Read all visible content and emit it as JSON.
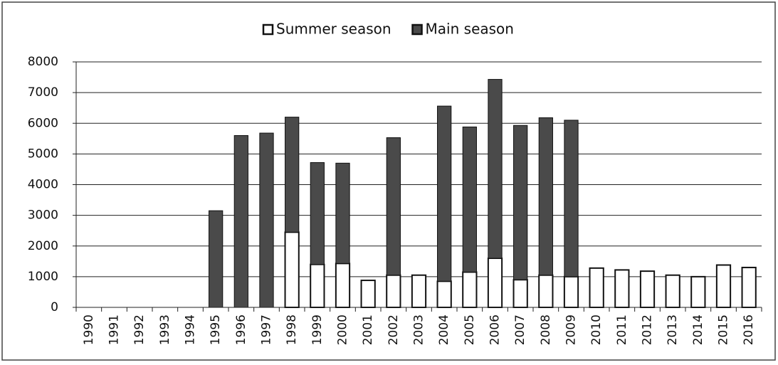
{
  "chart_data": {
    "type": "stacked-bar",
    "categories": [
      "1990",
      "1991",
      "1992",
      "1993",
      "1994",
      "1995",
      "1996",
      "1997",
      "1998",
      "1999",
      "2000",
      "2001",
      "2002",
      "2003",
      "2004",
      "2005",
      "2006",
      "2007",
      "2008",
      "2009",
      "2010",
      "2011",
      "2012",
      "2013",
      "2014",
      "2015",
      "2016"
    ],
    "series": [
      {
        "name": "Summer season",
        "color": "#ffffff",
        "values": [
          0,
          0,
          0,
          0,
          0,
          0,
          0,
          0,
          2450,
          1400,
          1430,
          880,
          1050,
          1050,
          850,
          1150,
          1600,
          900,
          1050,
          1000,
          1280,
          1220,
          1180,
          1050,
          1000,
          1380,
          1300
        ]
      },
      {
        "name": "Main season",
        "color": "#4a4a4a",
        "values": [
          0,
          0,
          0,
          0,
          0,
          3150,
          5600,
          5680,
          3750,
          3320,
          3270,
          0,
          4480,
          0,
          5710,
          4730,
          5830,
          5030,
          5130,
          5100,
          0,
          0,
          0,
          0,
          0,
          0,
          0
        ]
      }
    ],
    "ylim": [
      0,
      8000
    ],
    "yticks": [
      0,
      1000,
      2000,
      3000,
      4000,
      5000,
      6000,
      7000,
      8000
    ],
    "grid": true,
    "legend": "top"
  }
}
